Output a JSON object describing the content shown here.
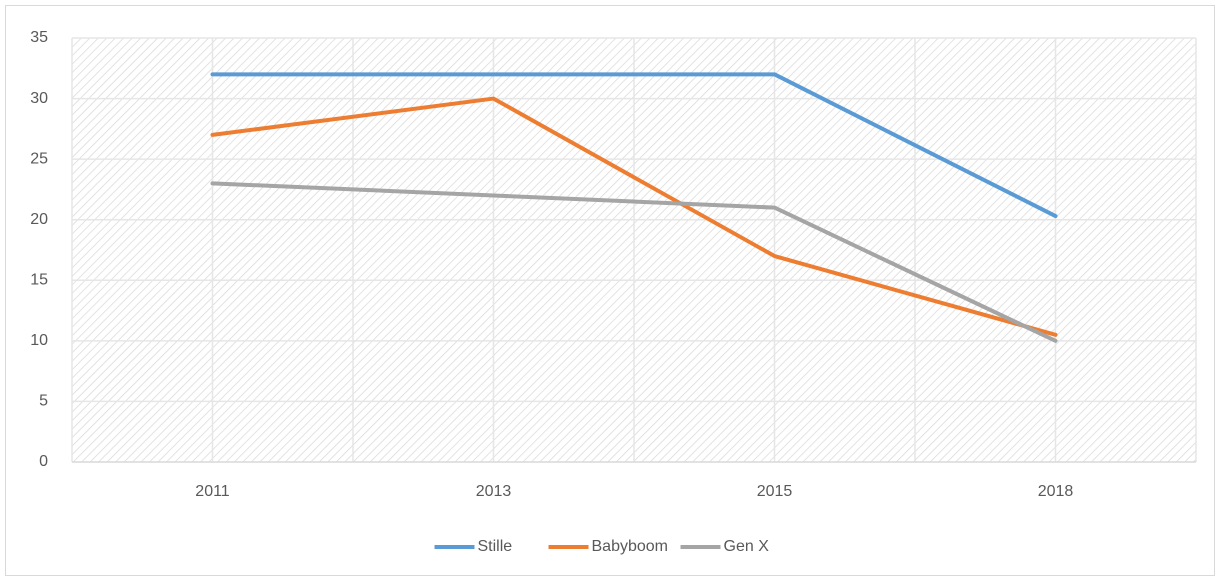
{
  "chart_data": {
    "type": "line",
    "categories": [
      "2011",
      "2013",
      "2015",
      "2018"
    ],
    "series": [
      {
        "name": "Stille",
        "color": "#5b9bd5",
        "values": [
          32,
          32,
          32,
          20.3
        ]
      },
      {
        "name": "Babyboom",
        "color": "#ed7d31",
        "values": [
          27,
          30,
          17,
          10.5
        ]
      },
      {
        "name": "Gen X",
        "color": "#a5a5a5",
        "values": [
          23,
          22,
          21,
          10
        ]
      }
    ],
    "ylim": [
      0,
      35
    ],
    "yticks": [
      0,
      5,
      10,
      15,
      20,
      25,
      30,
      35
    ],
    "grid": true,
    "legend": "bottom"
  }
}
